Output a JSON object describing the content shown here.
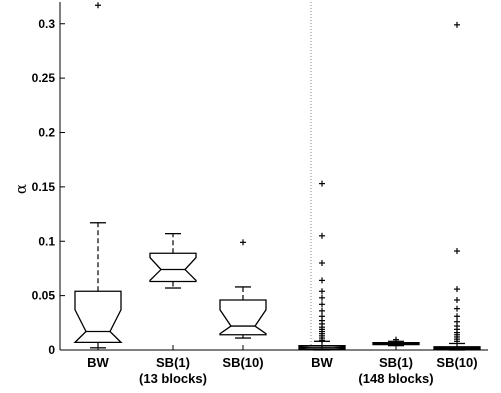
{
  "chart_data": {
    "type": "boxplot",
    "ylabel": "α",
    "ylim": [
      0,
      0.32
    ],
    "yticks": [
      0,
      0.05,
      0.1,
      0.15,
      0.2,
      0.25,
      0.3
    ],
    "ytick_labels": [
      "0",
      "0.05",
      "0.1",
      "0.15",
      "0.2",
      "0.25",
      "0.3"
    ],
    "notched": true,
    "grid": false,
    "colors": {
      "box": "#000000",
      "outlier": "#000000",
      "separator": "#888888"
    },
    "groups": [
      {
        "label": "(13 blocks)",
        "boxes": [
          {
            "category": "BW",
            "whisker_low": 0.002,
            "q1": 0.007,
            "median": 0.017,
            "q3": 0.054,
            "whisker_high": 0.117,
            "notch_low": 0.007,
            "notch_high": 0.037,
            "outliers": [
              0.317
            ]
          },
          {
            "category": "SB(1)",
            "whisker_low": 0.057,
            "q1": 0.063,
            "median": 0.074,
            "q3": 0.089,
            "whisker_high": 0.107,
            "notch_low": 0.064,
            "notch_high": 0.085,
            "outliers": []
          },
          {
            "category": "SB(10)",
            "whisker_low": 0.011,
            "q1": 0.014,
            "median": 0.022,
            "q3": 0.046,
            "whisker_high": 0.058,
            "notch_low": 0.015,
            "notch_high": 0.037,
            "outliers": [
              0.099
            ]
          }
        ]
      },
      {
        "label": "(148 blocks)",
        "boxes": [
          {
            "category": "BW",
            "whisker_low": 0.0,
            "q1": 0.001,
            "median": 0.0025,
            "q3": 0.004,
            "whisker_high": 0.008,
            "notch_low": 0.002,
            "notch_high": 0.003,
            "outliers": [
              0.009,
              0.011,
              0.013,
              0.015,
              0.017,
              0.019,
              0.021,
              0.024,
              0.027,
              0.031,
              0.036,
              0.042,
              0.048,
              0.054,
              0.064,
              0.08,
              0.105,
              0.153
            ]
          },
          {
            "category": "SB(1)",
            "whisker_low": 0.004,
            "q1": 0.005,
            "median": 0.0058,
            "q3": 0.0068,
            "whisker_high": 0.008,
            "notch_low": 0.0055,
            "notch_high": 0.0062,
            "outliers": [
              0.0095
            ]
          },
          {
            "category": "SB(10)",
            "whisker_low": 0.0,
            "q1": 0.001,
            "median": 0.002,
            "q3": 0.003,
            "whisker_high": 0.006,
            "notch_low": 0.0018,
            "notch_high": 0.0024,
            "outliers": [
              0.008,
              0.01,
              0.012,
              0.014,
              0.016,
              0.019,
              0.022,
              0.026,
              0.031,
              0.038,
              0.046,
              0.056,
              0.091,
              0.299
            ]
          }
        ]
      }
    ]
  }
}
